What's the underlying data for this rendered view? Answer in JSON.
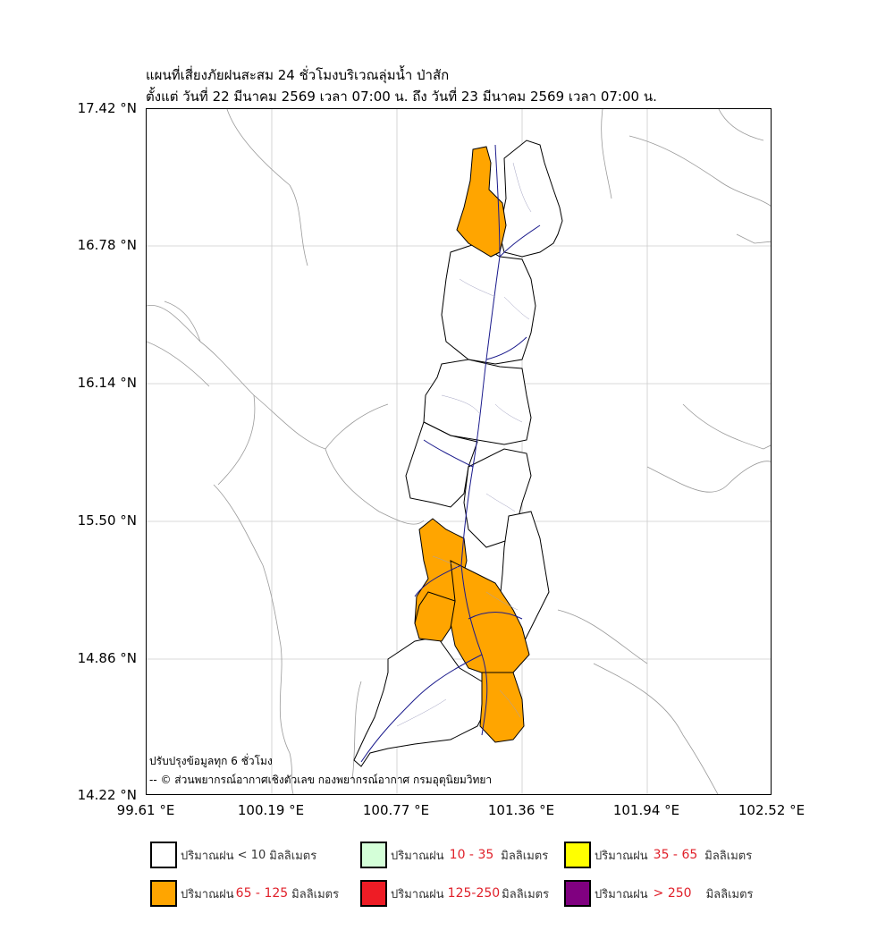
{
  "title": {
    "line1": "แผนที่เสี่ยงภัยฝนสะสม 24 ชั่วโมงบริเวณลุ่มน้ำ ป่าสัก",
    "line2": "ตั้งแต่ วันที่ 22 มีนาคม 2569 เวลา 07:00 น. ถึง วันที่ 23 มีนาคม 2569 เวลา 07:00 น."
  },
  "axes": {
    "lat_ticks": [
      "17.42 °N",
      "16.78 °N",
      "16.14 °N",
      "15.50 °N",
      "14.86 °N",
      "14.22 °N"
    ],
    "lon_ticks": [
      "99.61 °E",
      "100.19 °E",
      "100.77 °E",
      "101.36 °E",
      "101.94 °E",
      "102.52 °E"
    ]
  },
  "notes": {
    "update": "ปรับปรุงข้อมูลทุก 6 ชั่วโมง",
    "credit": "-- © ส่วนพยากรณ์อากาศเชิงตัวเลข กองพยากรณ์อากาศ กรมอุตุนิยมวิทยา"
  },
  "legend": [
    {
      "prefix": "ปริมาณฝน",
      "range": "< 10",
      "unit": "มิลลิเมตร",
      "color": "#ffffff"
    },
    {
      "prefix": "ปริมาณฝน",
      "range": "10 - 35",
      "unit": "มิลลิเมตร",
      "color": "#d4ffd8"
    },
    {
      "prefix": "ปริมาณฝน",
      "range": "35 - 65",
      "unit": "มิลลิเมตร",
      "color": "#ffff00"
    },
    {
      "prefix": "ปริมาณฝน",
      "range": "65 - 125",
      "unit": "มิลลิเมตร",
      "color": "#ffa500"
    },
    {
      "prefix": "ปริมาณฝน",
      "range": "125-250",
      "unit": "มิลลิเมตร",
      "color": "#ee1c25"
    },
    {
      "prefix": "ปริมาณฝน",
      "range": "> 250",
      "unit": "มิลลิเมตร",
      "color": "#800080"
    }
  ],
  "colors": {
    "low": "#ffffff",
    "high": "#ffa500",
    "river": "#1a1a8c",
    "boundary": "#999999"
  }
}
